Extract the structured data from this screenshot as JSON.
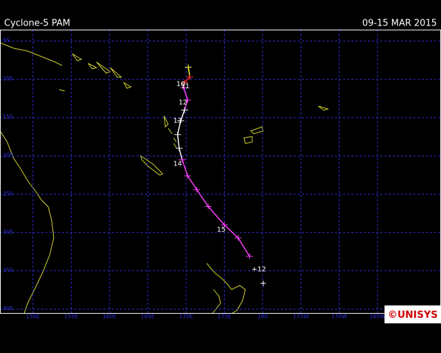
{
  "header": {
    "title": "Cyclone-5 PAM",
    "date": "09-15 MAR 2015"
  },
  "map": {
    "lon_range": [
      145.7,
      203.3
    ],
    "lat_range": [
      3.5,
      40.6
    ],
    "lon_ticks": [
      {
        "value": 150,
        "label": "150E"
      },
      {
        "value": 155,
        "label": "155E"
      },
      {
        "value": 160,
        "label": "160E"
      },
      {
        "value": 165,
        "label": "165E"
      },
      {
        "value": 170,
        "label": "170E"
      },
      {
        "value": 175,
        "label": "175E"
      },
      {
        "value": 180,
        "label": "180"
      },
      {
        "value": 185,
        "label": "175W"
      },
      {
        "value": 190,
        "label": "170W"
      },
      {
        "value": 195,
        "label": "165W"
      }
    ],
    "lat_ticks": [
      {
        "value": 5,
        "label": "5S"
      },
      {
        "value": 10,
        "label": "10S"
      },
      {
        "value": 15,
        "label": "15S"
      },
      {
        "value": 20,
        "label": "20S"
      },
      {
        "value": 25,
        "label": "25S"
      },
      {
        "value": 30,
        "label": "30S"
      },
      {
        "value": 35,
        "label": "35S"
      },
      {
        "value": 40,
        "label": "40S"
      }
    ],
    "grid_color": "#3030e0",
    "track": [
      {
        "lon": 170.3,
        "lat": 8.4,
        "color": "#ffff40"
      },
      {
        "lon": 170.5,
        "lat": 9.7,
        "color": "#ff3030"
      },
      {
        "lon": 169.8,
        "lat": 10.4,
        "color": "#ff3030"
      },
      {
        "lon": 169.7,
        "lat": 11.1,
        "color": "#ff40ff"
      },
      {
        "lon": 170.2,
        "lat": 12.7,
        "color": "#ff40ff"
      },
      {
        "lon": 169.8,
        "lat": 14.0,
        "color": "#ffffff"
      },
      {
        "lon": 169.3,
        "lat": 15.4,
        "color": "#ffffff"
      },
      {
        "lon": 168.9,
        "lat": 17.2,
        "color": "#ffffff"
      },
      {
        "lon": 169.1,
        "lat": 19.0,
        "color": "#ffffff"
      },
      {
        "lon": 169.5,
        "lat": 20.5,
        "color": "#ff40ff"
      },
      {
        "lon": 170.2,
        "lat": 22.6,
        "color": "#ff40ff"
      },
      {
        "lon": 171.4,
        "lat": 24.4,
        "color": "#ff40ff"
      },
      {
        "lon": 172.9,
        "lat": 26.6,
        "color": "#ff40ff"
      },
      {
        "lon": 175.0,
        "lat": 29.0,
        "color": "#ff40ff"
      },
      {
        "lon": 176.8,
        "lat": 30.7,
        "color": "#ff40ff"
      },
      {
        "lon": 178.3,
        "lat": 33.1,
        "color": "#ff40ff"
      }
    ],
    "day_labels": [
      {
        "text": "10",
        "lon": 169.3,
        "lat": 10.6
      },
      {
        "text": "11",
        "lon": 169.9,
        "lat": 10.9
      },
      {
        "text": "12",
        "lon": 169.6,
        "lat": 13.0
      },
      {
        "text": "13",
        "lon": 168.9,
        "lat": 15.4
      },
      {
        "text": "14",
        "lon": 168.9,
        "lat": 21.0
      },
      {
        "text": "15",
        "lon": 174.6,
        "lat": 29.6
      },
      {
        "text": "+12",
        "lon": 179.5,
        "lat": 34.8
      }
    ]
  },
  "logo": "©UNISYS"
}
